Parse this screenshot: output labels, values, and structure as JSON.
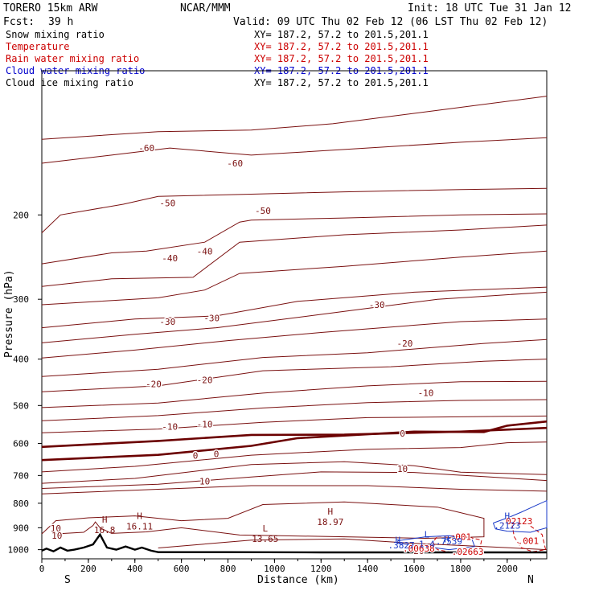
{
  "header": {
    "model": "TORERO  15km ARW",
    "fcst_label": "Fcst:",
    "fcst_value": "39 h",
    "org": "NCAR/MMM",
    "init": "Init: 18 UTC Tue 31 Jan 12",
    "valid": "Valid: 09 UTC Thu 02 Feb 12 (06 LST Thu 02 Feb 12)"
  },
  "fields": [
    {
      "name": "Snow mixing ratio",
      "xy": "XY= 187.2, 57.2 to 201.5,201.1",
      "color": "#000000"
    },
    {
      "name": "Temperature",
      "xy": "XY= 187.2, 57.2 to 201.5,201.1",
      "color": "#cc0000"
    },
    {
      "name": "Rain water mixing ratio",
      "xy": "XY= 187.2, 57.2 to 201.5,201.1",
      "color": "#cc0000"
    },
    {
      "name": "Cloud water mixing ratio",
      "xy": "XY= 187.2, 57.2 to 201.5,201.1",
      "color": "#0000cc"
    },
    {
      "name": "Cloud ice mixing ratio",
      "xy": "XY= 187.2, 57.2 to 201.5,201.1",
      "color": "#000000"
    }
  ],
  "colors": {
    "temperature": "#7a1010",
    "freezing": "#6b0000",
    "rain": "#cc0000",
    "cloud_water": "#1a3ac8",
    "terrain": "#000000"
  },
  "chart_data": {
    "type": "line",
    "xlabel": "Distance (km)",
    "ylabel": "Pressure (hPa)",
    "xlim": [
      0,
      2170
    ],
    "ylim": [
      1045,
      100
    ],
    "y_scale": "log",
    "xticks": [
      0,
      200,
      400,
      600,
      800,
      1000,
      1200,
      1400,
      1600,
      1800,
      2000
    ],
    "yticks": [
      200,
      300,
      400,
      500,
      600,
      700,
      800,
      900,
      1000
    ],
    "endpoint_left": "S",
    "endpoint_right": "N",
    "temperature_isotherms": [
      {
        "level": -60,
        "points": [
          [
            0,
            139
          ],
          [
            500,
            134
          ],
          [
            900,
            133
          ],
          [
            1250,
            129
          ],
          [
            1700,
            121
          ],
          [
            2170,
            113
          ]
        ]
      },
      {
        "level": -60,
        "points": [
          [
            0,
            156
          ],
          [
            300,
            150
          ],
          [
            550,
            145
          ],
          [
            900,
            150
          ],
          [
            1300,
            146
          ],
          [
            1800,
            141
          ],
          [
            2170,
            138
          ]
        ]
      },
      {
        "level": -50,
        "points": [
          [
            0,
            218
          ],
          [
            80,
            200
          ],
          [
            350,
            190
          ],
          [
            500,
            183
          ],
          [
            900,
            181
          ],
          [
            1300,
            179
          ],
          [
            1800,
            177
          ],
          [
            2170,
            176
          ]
        ]
      },
      {
        "level": -50,
        "points": [
          [
            0,
            253
          ],
          [
            300,
            240
          ],
          [
            450,
            238
          ],
          [
            700,
            228
          ],
          [
            850,
            207
          ],
          [
            900,
            205
          ],
          [
            1300,
            203
          ],
          [
            1800,
            200
          ],
          [
            2170,
            199
          ]
        ]
      },
      {
        "level": -40,
        "points": [
          [
            0,
            282
          ],
          [
            300,
            272
          ],
          [
            650,
            270
          ],
          [
            850,
            228
          ],
          [
            1300,
            220
          ],
          [
            1800,
            215
          ],
          [
            2170,
            210
          ]
        ]
      },
      {
        "level": -40,
        "points": [
          [
            0,
            308
          ],
          [
            500,
            298
          ],
          [
            700,
            287
          ],
          [
            850,
            265
          ],
          [
            1300,
            256
          ],
          [
            1800,
            245
          ],
          [
            2170,
            238
          ]
        ]
      },
      {
        "level": -30,
        "points": [
          [
            0,
            344
          ],
          [
            400,
            330
          ],
          [
            750,
            325
          ],
          [
            1100,
            303
          ],
          [
            1600,
            290
          ],
          [
            2170,
            283
          ]
        ]
      },
      {
        "level": -30,
        "points": [
          [
            0,
            370
          ],
          [
            400,
            355
          ],
          [
            750,
            344
          ],
          [
            1300,
            318
          ],
          [
            1700,
            300
          ],
          [
            2170,
            290
          ]
        ]
      },
      {
        "level": -20,
        "points": [
          [
            0,
            398
          ],
          [
            400,
            383
          ],
          [
            800,
            366
          ],
          [
            1200,
            352
          ],
          [
            1800,
            334
          ],
          [
            2170,
            330
          ]
        ]
      },
      {
        "level": -20,
        "points": [
          [
            0,
            435
          ],
          [
            500,
            420
          ],
          [
            950,
            397
          ],
          [
            1400,
            388
          ],
          [
            1900,
            371
          ],
          [
            2170,
            364
          ]
        ]
      },
      {
        "level": -20,
        "points": [
          [
            0,
            468
          ],
          [
            500,
            455
          ],
          [
            950,
            423
          ],
          [
            1500,
            415
          ],
          [
            1900,
            404
          ],
          [
            2170,
            400
          ]
        ]
      },
      {
        "level": -10,
        "points": [
          [
            0,
            505
          ],
          [
            500,
            494
          ],
          [
            950,
            471
          ],
          [
            1400,
            455
          ],
          [
            1800,
            446
          ],
          [
            2170,
            445
          ]
        ]
      },
      {
        "level": -10,
        "points": [
          [
            0,
            538
          ],
          [
            500,
            525
          ],
          [
            950,
            506
          ],
          [
            1400,
            493
          ],
          [
            1800,
            488
          ],
          [
            2170,
            486
          ]
        ]
      },
      {
        "level": -10,
        "points": [
          [
            0,
            570
          ],
          [
            500,
            560
          ],
          [
            950,
            542
          ],
          [
            1400,
            530
          ],
          [
            1800,
            528
          ],
          [
            2170,
            526
          ]
        ]
      },
      {
        "level": 0,
        "points": [
          [
            0,
            650
          ],
          [
            500,
            634
          ],
          [
            900,
            607
          ],
          [
            1100,
            585
          ],
          [
            1600,
            567
          ],
          [
            1900,
            568
          ],
          [
            2000,
            551
          ],
          [
            2170,
            540
          ]
        ]
      },
      {
        "level": 0,
        "points": [
          [
            0,
            610
          ],
          [
            500,
            593
          ],
          [
            900,
            576
          ],
          [
            1300,
            575
          ],
          [
            1800,
            567
          ],
          [
            2170,
            557
          ]
        ]
      },
      {
        "level": 10,
        "points": [
          [
            0,
            688
          ],
          [
            400,
            670
          ],
          [
            900,
            635
          ],
          [
            1400,
            617
          ],
          [
            1800,
            612
          ],
          [
            2000,
            598
          ],
          [
            2170,
            596
          ]
        ]
      },
      {
        "level": 10,
        "points": [
          [
            0,
            727
          ],
          [
            400,
            710
          ],
          [
            900,
            664
          ],
          [
            1300,
            655
          ],
          [
            1600,
            668
          ],
          [
            1800,
            689
          ],
          [
            2170,
            697
          ]
        ]
      },
      {
        "level": 10,
        "points": [
          [
            0,
            745
          ],
          [
            500,
            730
          ],
          [
            900,
            705
          ],
          [
            1200,
            688
          ],
          [
            1600,
            690
          ],
          [
            1900,
            704
          ],
          [
            2170,
            717
          ]
        ]
      },
      {
        "level": 10,
        "points": [
          [
            0,
            765
          ],
          [
            500,
            748
          ],
          [
            900,
            735
          ],
          [
            1400,
            735
          ],
          [
            1800,
            748
          ],
          [
            2170,
            755
          ]
        ]
      },
      {
        "level": 10,
        "points": [
          [
            0,
            927
          ],
          [
            60,
            870
          ],
          [
            200,
            858
          ],
          [
            400,
            850
          ],
          [
            600,
            870
          ],
          [
            800,
            860
          ],
          [
            950,
            805
          ],
          [
            1300,
            795
          ],
          [
            1700,
            815
          ],
          [
            1900,
            860
          ],
          [
            1900,
            940
          ],
          [
            1650,
            947
          ],
          [
            1300,
            940
          ],
          [
            850,
            932
          ],
          [
            600,
            900
          ],
          [
            450,
            918
          ],
          [
            300,
            925
          ],
          [
            250,
            900
          ],
          [
            230,
            875
          ],
          [
            220,
            890
          ],
          [
            180,
            920
          ],
          [
            60,
            927
          ]
        ]
      },
      {
        "level": 20,
        "points": [
          [
            500,
            992
          ],
          [
            900,
            955
          ],
          [
            1300,
            950
          ],
          [
            1600,
            970
          ],
          [
            1900,
            985
          ],
          [
            2170,
            1000
          ]
        ]
      }
    ],
    "isotherm_labels": [
      {
        "text": "-60",
        "x": 450,
        "y": 145
      },
      {
        "text": "-60",
        "x": 830,
        "y": 156
      },
      {
        "text": "-50",
        "x": 540,
        "y": 189
      },
      {
        "text": "-50",
        "x": 950,
        "y": 196
      },
      {
        "text": "-40",
        "x": 550,
        "y": 246
      },
      {
        "text": "-40",
        "x": 700,
        "y": 238
      },
      {
        "text": "-30",
        "x": 540,
        "y": 334
      },
      {
        "text": "-30",
        "x": 730,
        "y": 328
      },
      {
        "text": "-30",
        "x": 1440,
        "y": 308
      },
      {
        "text": "-20",
        "x": 480,
        "y": 451
      },
      {
        "text": "-20",
        "x": 700,
        "y": 442
      },
      {
        "text": "-20",
        "x": 1560,
        "y": 371
      },
      {
        "text": "-10",
        "x": 1650,
        "y": 470
      },
      {
        "text": "-10",
        "x": 550,
        "y": 553
      },
      {
        "text": "-10",
        "x": 700,
        "y": 547
      },
      {
        "text": "0",
        "x": 660,
        "y": 636
      },
      {
        "text": "0",
        "x": 750,
        "y": 631
      },
      {
        "text": "0",
        "x": 1550,
        "y": 572
      },
      {
        "text": "10",
        "x": 1550,
        "y": 678
      },
      {
        "text": "10",
        "x": 700,
        "y": 720
      },
      {
        "text": "10",
        "x": 60,
        "y": 903
      },
      {
        "text": "10",
        "x": 65,
        "y": 935
      },
      {
        "text": "20",
        "x": 1620,
        "y": 1005
      }
    ],
    "extrema_labels": [
      {
        "kind": "H",
        "value": "16.8",
        "x": 270,
        "y": 905
      },
      {
        "kind": "H",
        "value": "16.11",
        "x": 420,
        "y": 890
      },
      {
        "kind": "H",
        "value": "18.97",
        "x": 1240,
        "y": 872
      },
      {
        "kind": "L",
        "value": "13.65",
        "x": 960,
        "y": 945
      }
    ],
    "rain_contours": [
      {
        "level": 0.001,
        "points": [
          [
            1700,
            938
          ],
          [
            1800,
            935
          ],
          [
            1890,
            955
          ],
          [
            1880,
            1005
          ],
          [
            1790,
            1020
          ],
          [
            1700,
            1000
          ],
          [
            1680,
            965
          ],
          [
            1700,
            938
          ]
        ]
      },
      {
        "level": 0.001,
        "points": [
          [
            2020,
            880
          ],
          [
            2090,
            885
          ],
          [
            2150,
            930
          ],
          [
            2165,
            1000
          ],
          [
            2110,
            1010
          ],
          [
            2060,
            990
          ],
          [
            2030,
            940
          ],
          [
            2020,
            880
          ]
        ]
      }
    ],
    "rain_labels": [
      {
        "text": ".001",
        "x": 1800,
        "y": 940
      },
      {
        "text": ".001",
        "x": 2090,
        "y": 958
      },
      {
        "text": ".00638",
        "x": 1620,
        "y": 993
      },
      {
        "text": ".02663",
        "x": 1830,
        "y": 1010
      },
      {
        "text": ".02123",
        "x": 2040,
        "y": 872
      }
    ],
    "cloud_water_contours": [
      {
        "level": 0.1,
        "points": [
          [
            1530,
            958
          ],
          [
            1650,
            940
          ],
          [
            1750,
            935
          ],
          [
            1850,
            955
          ],
          [
            1860,
            985
          ],
          [
            1750,
            1000
          ],
          [
            1650,
            985
          ],
          [
            1530,
            970
          ],
          [
            1530,
            958
          ]
        ]
      },
      {
        "level": 0.1,
        "points": [
          [
            1940,
            880
          ],
          [
            2010,
            855
          ],
          [
            2060,
            835
          ],
          [
            2120,
            810
          ],
          [
            2170,
            790
          ],
          [
            2170,
            900
          ],
          [
            2100,
            920
          ],
          [
            2000,
            915
          ],
          [
            1950,
            905
          ],
          [
            1940,
            880
          ]
        ]
      }
    ],
    "cloud_water_labels": [
      {
        "text": "H",
        "x": 1530,
        "y": 955
      },
      {
        "text": ".3827",
        "x": 1545,
        "y": 978
      },
      {
        "text": "H",
        "x": 1740,
        "y": 950
      },
      {
        "text": ".7539",
        "x": 1750,
        "y": 960
      }
    ],
    "cloud_water_extrema_labels": [
      {
        "kind": "L",
        "value": "1.4",
        "x": 1655,
        "y": 950
      },
      {
        "kind": "H",
        "value": ".2123",
        "x": 2000,
        "y": 870
      }
    ],
    "terrain": [
      [
        0,
        1005
      ],
      [
        20,
        995
      ],
      [
        50,
        1008
      ],
      [
        80,
        990
      ],
      [
        110,
        1005
      ],
      [
        140,
        1000
      ],
      [
        180,
        990
      ],
      [
        220,
        975
      ],
      [
        250,
        930
      ],
      [
        280,
        990
      ],
      [
        320,
        1000
      ],
      [
        360,
        985
      ],
      [
        400,
        1000
      ],
      [
        430,
        990
      ],
      [
        470,
        1005
      ],
      [
        500,
        1012
      ],
      [
        800,
        1012
      ],
      [
        1200,
        1013
      ],
      [
        1700,
        1013
      ],
      [
        2170,
        1013
      ]
    ]
  }
}
